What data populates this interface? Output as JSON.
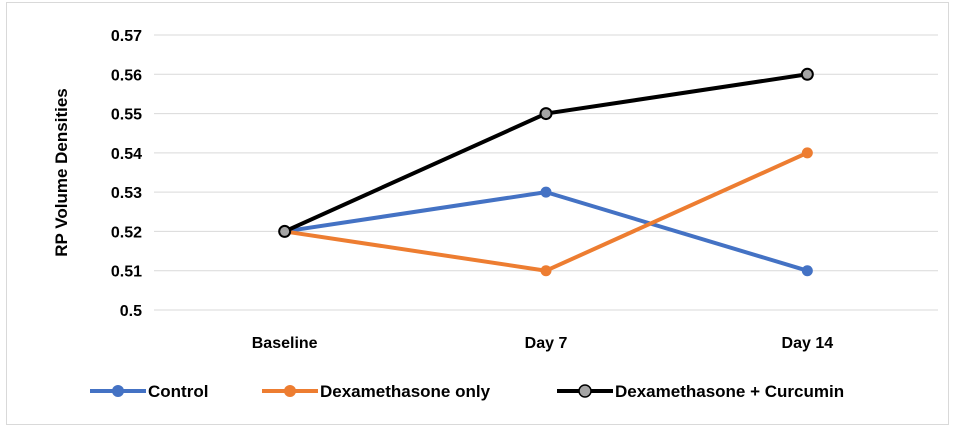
{
  "chart_data": {
    "type": "line",
    "title": "",
    "xlabel": "",
    "ylabel": "RP Volume Densities",
    "categories": [
      "Baseline",
      "Day 7",
      "Day 14"
    ],
    "ylim": [
      0.5,
      0.57
    ],
    "yticks": [
      0.5,
      0.51,
      0.52,
      0.53,
      0.54,
      0.55,
      0.56,
      0.57
    ],
    "ytick_labels": [
      "0.5",
      "0.51",
      "0.52",
      "0.53",
      "0.54",
      "0.55",
      "0.56",
      "0.57"
    ],
    "grid": true,
    "legend_position": "bottom",
    "series": [
      {
        "name": "Control",
        "values": [
          0.52,
          0.53,
          0.51
        ],
        "color": "#4472c4",
        "marker_color": "#4472c4"
      },
      {
        "name": "Dexamethasone only",
        "values": [
          0.52,
          0.51,
          0.54
        ],
        "color": "#ed7d31",
        "marker_color": "#ed7d31"
      },
      {
        "name": "Dexamethasone + Curcumin",
        "values": [
          0.52,
          0.55,
          0.56
        ],
        "color": "#000000",
        "marker_color": "#a5a5a5"
      }
    ]
  }
}
